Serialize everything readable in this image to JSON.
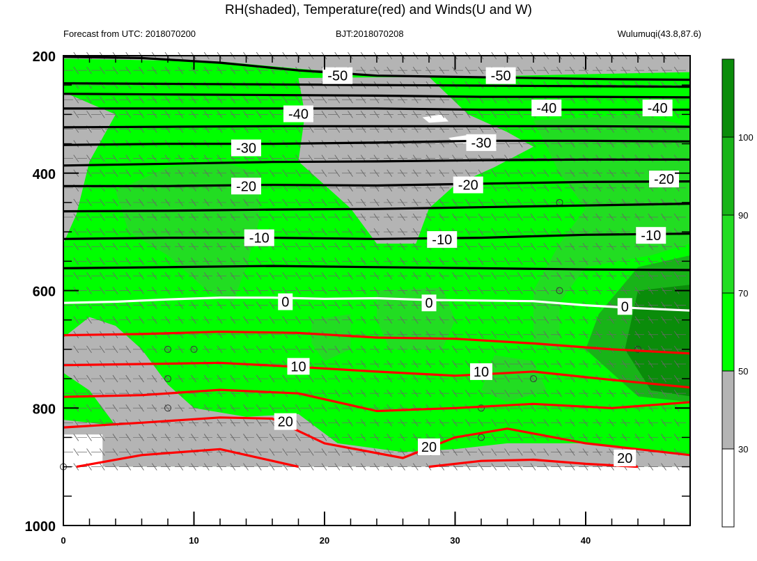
{
  "chart_data": {
    "type": "contour",
    "title": "RH(shaded), Temperature(red) and Winds(U and W)",
    "subtitle_left": "Forecast from UTC: 2018070200",
    "subtitle_center": "BJT:2018070208",
    "subtitle_right": "Wulumuqi(43.8,87.6)",
    "x_ticks": [
      "0",
      "10",
      "20",
      "30",
      "40"
    ],
    "x_tick_values": [
      0,
      10,
      20,
      30,
      40
    ],
    "y_ticks": [
      "200",
      "400",
      "600",
      "800",
      "1000"
    ],
    "y_tick_values": [
      200,
      400,
      600,
      800,
      1000
    ],
    "xlim": [
      0,
      48
    ],
    "ylim": [
      200,
      1000
    ],
    "y_axis_inverted": true,
    "colorbar": {
      "labels": [
        "30",
        "50",
        "70",
        "90",
        "100"
      ],
      "bounds": [
        30,
        50,
        70,
        90,
        100
      ],
      "colors": [
        "#ffffff",
        "#b4b4b4",
        "#00ff00",
        "#22dd22",
        "#18b418",
        "#0a8c0a"
      ]
    },
    "rh_fill_colors": {
      "lt30": "#ffffff",
      "30_50": "#b4b4b4",
      "50_70": "#00ff00",
      "70_90": "#22dd22",
      "90_100": "#18b418",
      "gt100": "#0a8c0a"
    },
    "temperature_isotherms": [
      {
        "level": -50,
        "color": "#000000",
        "label": "-50",
        "x": [
          0,
          6,
          12,
          18,
          24,
          30,
          36,
          42,
          48
        ],
        "y": [
          202,
          204,
          212,
          225,
          234,
          236,
          238,
          240,
          241
        ]
      },
      {
        "level": -45,
        "color": "#000000",
        "x": [
          0,
          8,
          16,
          24,
          32,
          40,
          48
        ],
        "y": [
          247,
          248,
          249,
          250,
          251,
          252,
          253
        ]
      },
      {
        "level": -45,
        "color": "#000000",
        "x": [
          0,
          8,
          16,
          24,
          32,
          40,
          48
        ],
        "y": [
          265,
          266,
          267,
          268,
          270,
          270,
          271
        ]
      },
      {
        "level": -40,
        "color": "#000000",
        "label": "-40",
        "x": [
          0,
          8,
          16,
          24,
          32,
          40,
          48
        ],
        "y": [
          290,
          290,
          290,
          290,
          292,
          292,
          292
        ]
      },
      {
        "level": -35,
        "color": "#000000",
        "x": [
          0,
          8,
          16,
          24,
          32,
          40,
          48
        ],
        "y": [
          322,
          321,
          320,
          320,
          320,
          320,
          321
        ]
      },
      {
        "level": -30,
        "color": "#000000",
        "label": "-30",
        "x": [
          0,
          8,
          16,
          24,
          32,
          40,
          48
        ],
        "y": [
          352,
          350,
          350,
          348,
          345,
          345,
          346
        ]
      },
      {
        "level": -25,
        "color": "#000000",
        "x": [
          0,
          8,
          16,
          24,
          32,
          40,
          48
        ],
        "y": [
          387,
          384,
          381,
          380,
          378,
          377,
          377
        ]
      },
      {
        "level": -20,
        "color": "#000000",
        "label": "-20",
        "x": [
          0,
          8,
          16,
          24,
          32,
          40,
          48
        ],
        "y": [
          422,
          422,
          420,
          421,
          418,
          415,
          414
        ]
      },
      {
        "level": -15,
        "color": "#000000",
        "x": [
          0,
          8,
          16,
          24,
          32,
          40,
          48
        ],
        "y": [
          465,
          464,
          462,
          461,
          458,
          455,
          452
        ]
      },
      {
        "level": -10,
        "color": "#000000",
        "label": "-10",
        "x": [
          0,
          8,
          16,
          24,
          32,
          40,
          48
        ],
        "y": [
          512,
          510,
          510,
          512,
          510,
          505,
          503
        ]
      },
      {
        "level": -5,
        "color": "#000000",
        "x": [
          0,
          8,
          16,
          24,
          32,
          40,
          48
        ],
        "y": [
          562,
          560,
          558,
          560,
          562,
          564,
          565
        ]
      },
      {
        "level": 0,
        "color": "#ffffff",
        "label": "0",
        "x": [
          0,
          4,
          8,
          12,
          16,
          20,
          24,
          28,
          32,
          36,
          40,
          44,
          48
        ],
        "y": [
          621,
          619,
          615,
          612,
          612,
          614,
          613,
          616,
          617,
          618,
          625,
          630,
          634
        ]
      },
      {
        "level": 5,
        "color": "#ff0000",
        "x": [
          0,
          6,
          12,
          18,
          24,
          30,
          36,
          42,
          48
        ],
        "y": [
          676,
          674,
          670,
          672,
          680,
          682,
          690,
          700,
          707
        ]
      },
      {
        "level": 10,
        "color": "#ff0000",
        "label": "10",
        "x": [
          0,
          6,
          12,
          18,
          24,
          30,
          36,
          42,
          48
        ],
        "y": [
          727,
          725,
          723,
          730,
          738,
          745,
          738,
          752,
          765
        ]
      },
      {
        "level": 15,
        "color": "#ff0000",
        "x": [
          0,
          6,
          12,
          18,
          24,
          30,
          36,
          42,
          48
        ],
        "y": [
          781,
          778,
          769,
          775,
          805,
          800,
          793,
          800,
          790
        ]
      },
      {
        "level": 20,
        "color": "#ff0000",
        "label": "20",
        "x": [
          0,
          6,
          12,
          16,
          20,
          26,
          30,
          34,
          40,
          48
        ],
        "y": [
          833,
          825,
          816,
          818,
          860,
          885,
          850,
          835,
          860,
          880
        ]
      },
      {
        "level": 25,
        "color": "#ff0000",
        "x": [
          1,
          6,
          12,
          18
        ],
        "y": [
          900,
          880,
          870,
          900
        ]
      },
      {
        "level": 25,
        "color": "#ff0000",
        "x": [
          28,
          32,
          36,
          40,
          44
        ],
        "y": [
          900,
          890,
          888,
          895,
          900
        ]
      }
    ],
    "contour_labels": [
      {
        "text": "-50",
        "x": 21,
        "y": 234
      },
      {
        "text": "-50",
        "x": 33.5,
        "y": 234
      },
      {
        "text": "-40",
        "x": 18,
        "y": 299
      },
      {
        "text": "-40",
        "x": 37,
        "y": 289
      },
      {
        "text": "-40",
        "x": 45.5,
        "y": 289
      },
      {
        "text": "-30",
        "x": 14,
        "y": 357
      },
      {
        "text": "-30",
        "x": 32,
        "y": 348
      },
      {
        "text": "-20",
        "x": 14,
        "y": 422
      },
      {
        "text": "-20",
        "x": 31,
        "y": 420
      },
      {
        "text": "-20",
        "x": 46,
        "y": 410
      },
      {
        "text": "-10",
        "x": 15,
        "y": 510
      },
      {
        "text": "-10",
        "x": 29,
        "y": 513
      },
      {
        "text": "-10",
        "x": 45,
        "y": 506
      },
      {
        "text": "0",
        "x": 17,
        "y": 619
      },
      {
        "text": "0",
        "x": 28,
        "y": 621
      },
      {
        "text": "0",
        "x": 43,
        "y": 627
      },
      {
        "text": "10",
        "x": 18,
        "y": 729
      },
      {
        "text": "10",
        "x": 32,
        "y": 738
      },
      {
        "text": "20",
        "x": 17,
        "y": 823
      },
      {
        "text": "20",
        "x": 28,
        "y": 866
      },
      {
        "text": "20",
        "x": 43,
        "y": 885
      }
    ],
    "calm_circles": [
      {
        "x": 0,
        "y": 900
      },
      {
        "x": 8,
        "y": 700
      },
      {
        "x": 10,
        "y": 700
      },
      {
        "x": 8,
        "y": 750
      },
      {
        "x": 8,
        "y": 800
      },
      {
        "x": 32,
        "y": 800
      },
      {
        "x": 32,
        "y": 850
      },
      {
        "x": 36,
        "y": 750
      },
      {
        "x": 38,
        "y": 600
      },
      {
        "x": 38,
        "y": 450
      },
      {
        "x": 44,
        "y": 700
      }
    ],
    "grid": true,
    "legend": "colorbar-right"
  }
}
